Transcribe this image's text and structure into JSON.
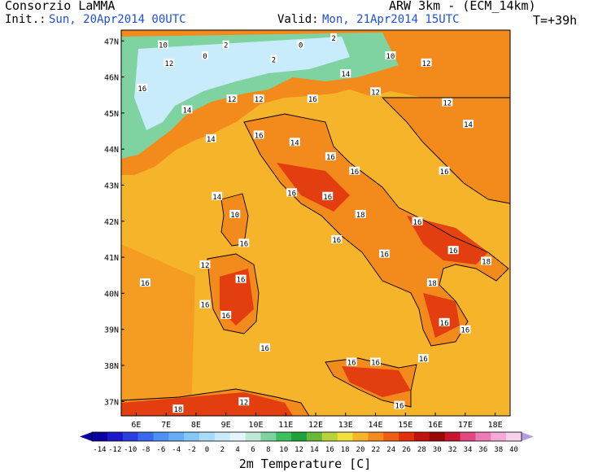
{
  "header": {
    "org": "Consorzio LaMMA",
    "model": "ARW 3km - (ECM_14km)",
    "init_label": "Init.:",
    "init_value": "Sun, 20Apr2014 00UTC",
    "valid_label": "Valid:",
    "valid_value": "Mon, 21Apr2014 15UTC",
    "forecast_step": "T=+39h"
  },
  "axes": {
    "lat_labels": [
      "47N",
      "46N",
      "45N",
      "44N",
      "43N",
      "42N",
      "41N",
      "40N",
      "39N",
      "38N",
      "37N"
    ],
    "lon_labels": [
      "6E",
      "7E",
      "8E",
      "9E",
      "10E",
      "11E",
      "12E",
      "13E",
      "14E",
      "15E",
      "16E",
      "17E",
      "18E"
    ]
  },
  "colorbar": {
    "title": "2m Temperature [C]",
    "ticks": [
      "-14",
      "-12",
      "-10",
      "-8",
      "-6",
      "-4",
      "-2",
      "0",
      "2",
      "4",
      "6",
      "8",
      "10",
      "12",
      "14",
      "16",
      "18",
      "20",
      "22",
      "24",
      "26",
      "28",
      "30",
      "32",
      "34",
      "36",
      "38",
      "40"
    ],
    "colors": [
      "#0a00a0",
      "#1a18c8",
      "#2a3ee0",
      "#3a68ee",
      "#4e90f4",
      "#68acf6",
      "#86c6f8",
      "#a8dcfa",
      "#c8ecfb",
      "#e2f6fc",
      "#bfe8d8",
      "#7fd3a0",
      "#3cbf5e",
      "#1ea23c",
      "#6ab83a",
      "#b8d23a",
      "#f0e03c",
      "#f6b42a",
      "#f28a1c",
      "#ee5e14",
      "#e0300e",
      "#c2140c",
      "#9a0808",
      "#c8142c",
      "#e04880",
      "#ec7ab4",
      "#f4aad6",
      "#f8d0ec"
    ]
  },
  "map": {
    "sea_color": "#f6b42a",
    "land_color": "#f28a1c",
    "hot_color": "#e0300e",
    "alps_colors": [
      "#c8ecfb",
      "#7fd3a0",
      "#3cbf5e"
    ],
    "city_labels": [
      {
        "lon": 6.9,
        "lat": 46.9,
        "t": "10"
      },
      {
        "lon": 7.1,
        "lat": 46.4,
        "t": "12"
      },
      {
        "lon": 8.3,
        "lat": 46.6,
        "t": "0"
      },
      {
        "lon": 9.0,
        "lat": 46.9,
        "t": "2"
      },
      {
        "lon": 10.6,
        "lat": 46.5,
        "t": "2"
      },
      {
        "lon": 11.5,
        "lat": 46.9,
        "t": "0"
      },
      {
        "lon": 12.6,
        "lat": 47.1,
        "t": "2"
      },
      {
        "lon": 14.5,
        "lat": 46.6,
        "t": "10"
      },
      {
        "lon": 15.7,
        "lat": 46.4,
        "t": "12"
      },
      {
        "lon": 6.2,
        "lat": 45.7,
        "t": "16"
      },
      {
        "lon": 7.7,
        "lat": 45.1,
        "t": "14"
      },
      {
        "lon": 9.2,
        "lat": 45.4,
        "t": "12"
      },
      {
        "lon": 10.1,
        "lat": 45.4,
        "t": "12"
      },
      {
        "lon": 11.9,
        "lat": 45.4,
        "t": "16"
      },
      {
        "lon": 13.0,
        "lat": 46.1,
        "t": "14"
      },
      {
        "lon": 14.0,
        "lat": 45.6,
        "t": "12"
      },
      {
        "lon": 16.4,
        "lat": 45.3,
        "t": "12"
      },
      {
        "lon": 17.1,
        "lat": 44.7,
        "t": "14"
      },
      {
        "lon": 8.5,
        "lat": 44.3,
        "t": "14"
      },
      {
        "lon": 10.1,
        "lat": 44.4,
        "t": "16"
      },
      {
        "lon": 11.3,
        "lat": 44.2,
        "t": "14"
      },
      {
        "lon": 12.5,
        "lat": 43.8,
        "t": "16"
      },
      {
        "lon": 13.3,
        "lat": 43.4,
        "t": "16"
      },
      {
        "lon": 16.3,
        "lat": 43.4,
        "t": "16"
      },
      {
        "lon": 11.2,
        "lat": 42.8,
        "t": "16"
      },
      {
        "lon": 12.4,
        "lat": 42.7,
        "t": "16"
      },
      {
        "lon": 13.5,
        "lat": 42.2,
        "t": "18"
      },
      {
        "lon": 15.4,
        "lat": 42.0,
        "t": "16"
      },
      {
        "lon": 8.7,
        "lat": 42.7,
        "t": "14"
      },
      {
        "lon": 9.3,
        "lat": 42.2,
        "t": "10"
      },
      {
        "lon": 9.6,
        "lat": 41.4,
        "t": "16"
      },
      {
        "lon": 12.7,
        "lat": 41.5,
        "t": "16"
      },
      {
        "lon": 14.3,
        "lat": 41.1,
        "t": "16"
      },
      {
        "lon": 16.6,
        "lat": 41.2,
        "t": "16"
      },
      {
        "lon": 17.7,
        "lat": 40.9,
        "t": "18"
      },
      {
        "lon": 8.3,
        "lat": 40.8,
        "t": "12"
      },
      {
        "lon": 9.5,
        "lat": 40.4,
        "t": "16"
      },
      {
        "lon": 6.3,
        "lat": 40.3,
        "t": "16"
      },
      {
        "lon": 15.9,
        "lat": 40.3,
        "t": "18"
      },
      {
        "lon": 8.3,
        "lat": 39.7,
        "t": "16"
      },
      {
        "lon": 9.0,
        "lat": 39.4,
        "t": "16"
      },
      {
        "lon": 16.3,
        "lat": 39.2,
        "t": "16"
      },
      {
        "lon": 17.0,
        "lat": 39.0,
        "t": "16"
      },
      {
        "lon": 10.3,
        "lat": 38.5,
        "t": "16"
      },
      {
        "lon": 13.2,
        "lat": 38.1,
        "t": "16"
      },
      {
        "lon": 14.0,
        "lat": 38.1,
        "t": "16"
      },
      {
        "lon": 15.6,
        "lat": 38.2,
        "t": "16"
      },
      {
        "lon": 14.8,
        "lat": 36.9,
        "t": "16"
      },
      {
        "lon": 7.4,
        "lat": 36.8,
        "t": "18"
      },
      {
        "lon": 9.6,
        "lat": 37.0,
        "t": "12"
      },
      {
        "lon": 15.0,
        "lat": 36.5,
        "t": "16"
      }
    ]
  }
}
